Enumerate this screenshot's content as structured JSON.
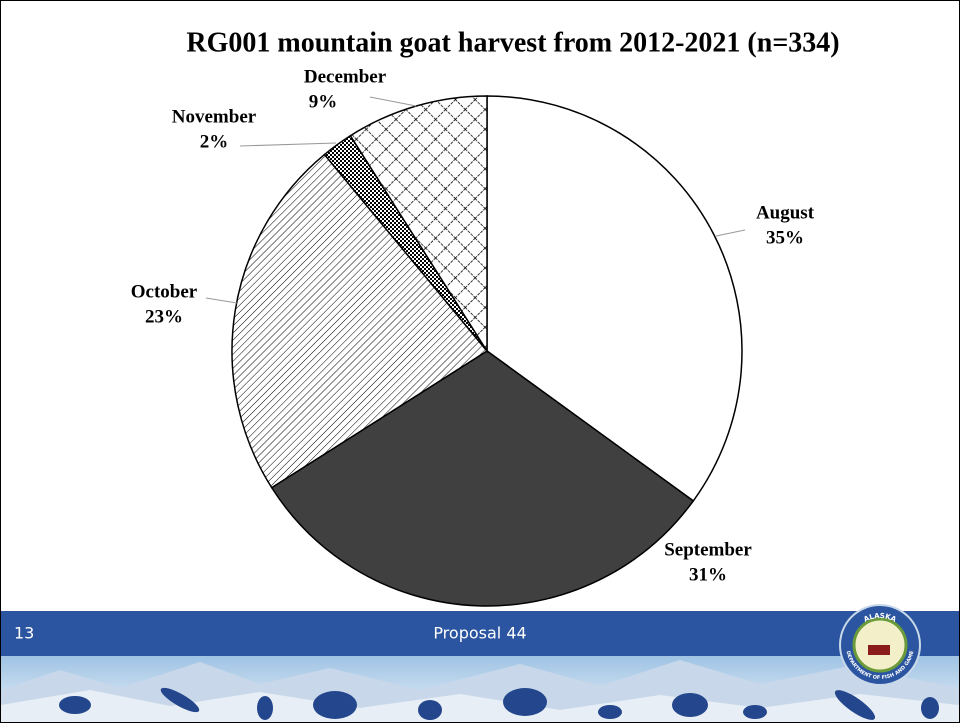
{
  "chart_data": {
    "type": "pie",
    "title": "RG001 mountain goat harvest from 2012-2021 (n=334)",
    "categories": [
      "August",
      "September",
      "October",
      "November",
      "December"
    ],
    "values": [
      35,
      31,
      23,
      2,
      9
    ],
    "value_labels": [
      "35%",
      "31%",
      "23%",
      "2%",
      "9%"
    ]
  },
  "footer": {
    "slide_number": "13",
    "text": "Proposal 44"
  },
  "logo": {
    "top": "ALASKA",
    "bottom": "DEPARTMENT OF FISH AND GAME"
  }
}
